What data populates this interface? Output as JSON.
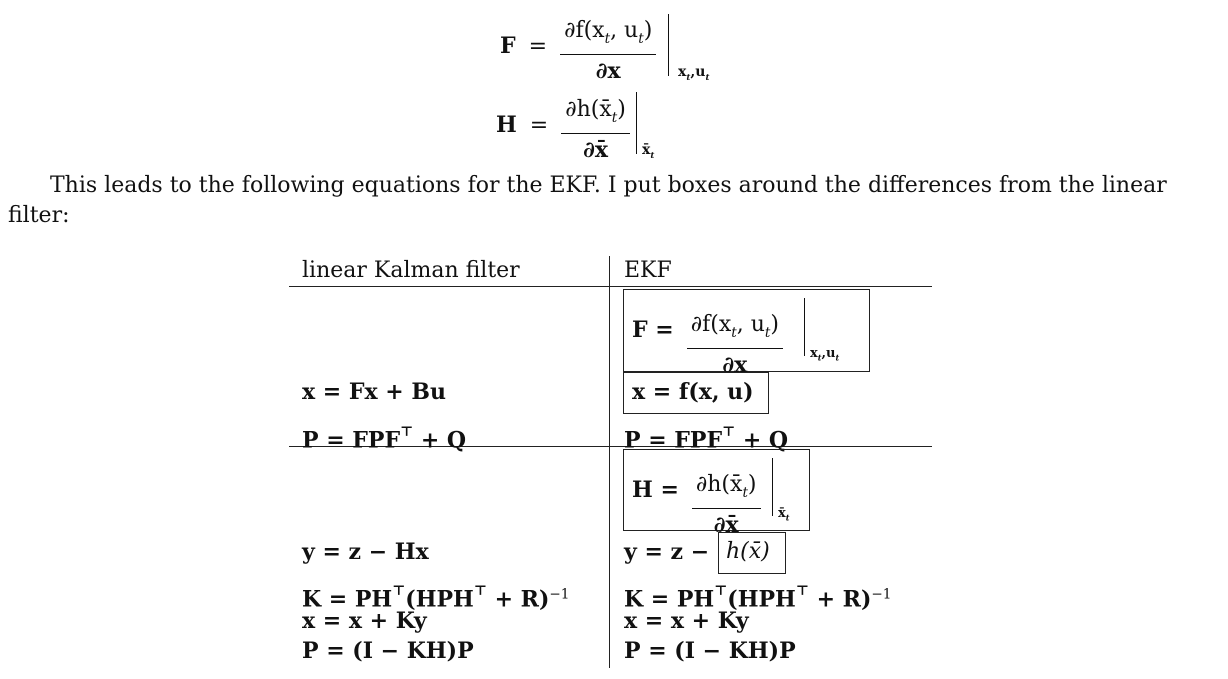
{
  "top_equations": {
    "F_def": {
      "lhs": "F",
      "eq": "=",
      "numerator": "∂f(x",
      "num_sub1": "t",
      "num_comma": ", u",
      "num_sub2": "t",
      "num_close": ")",
      "denominator": "∂x",
      "eval_at": "x",
      "eval_sub1": "t",
      "eval_comma": ",u",
      "eval_sub2": "t"
    },
    "H_def": {
      "lhs": "H",
      "eq": "=",
      "numerator": "∂h(x̄",
      "num_sub": "t",
      "num_close": ")",
      "denominator": "∂x̄",
      "eval_at": "x̄",
      "eval_sub": "t"
    }
  },
  "paragraph": {
    "line1": "This leads to the following equations for the EKF. I put boxes around the differences from the linear",
    "line2": "filter:"
  },
  "table": {
    "headers": {
      "left": "linear Kalman filter",
      "right": "EKF"
    },
    "predict_left": {
      "x_update": "x = Fx + Bu",
      "p_update_a": "P = FPF",
      "p_update_sup": "⊤",
      "p_update_b": " + Q"
    },
    "predict_right": {
      "F_box": {
        "lhs": "F =",
        "numerator": "∂f(x",
        "num_sub1": "t",
        "num_comma": ", u",
        "num_sub2": "t",
        "num_close": ")",
        "denominator": "∂x",
        "eval_at": "x",
        "eval_sub1": "t",
        "eval_comma": ",u",
        "eval_sub2": "t"
      },
      "x_box": "x = f(x, u)",
      "p_update_a": "P = FPF",
      "p_update_sup": "⊤",
      "p_update_b": " + Q"
    },
    "update_left": {
      "y": "y = z − Hx",
      "k_a": "K = PH",
      "k_sup1": "⊤",
      "k_b": "(HPH",
      "k_sup2": "⊤",
      "k_c": " + R)",
      "k_sup3": "−1",
      "x": "x = x + Ky",
      "p": "P = (I − KH)P"
    },
    "update_right": {
      "H_box": {
        "lhs": "H =",
        "numerator": "∂h(x̄",
        "num_sub": "t",
        "num_close": ")",
        "denominator": "∂x̄",
        "eval_at": "x̄",
        "eval_sub": "t"
      },
      "y_a": "y = z −",
      "y_box": "h(x̄)",
      "k_a": "K = PH",
      "k_sup1": "⊤",
      "k_b": "(HPH",
      "k_sup2": "⊤",
      "k_c": " + R)",
      "k_sup3": "−1",
      "x": "x = x + Ky",
      "p": "P = (I − KH)P"
    }
  }
}
